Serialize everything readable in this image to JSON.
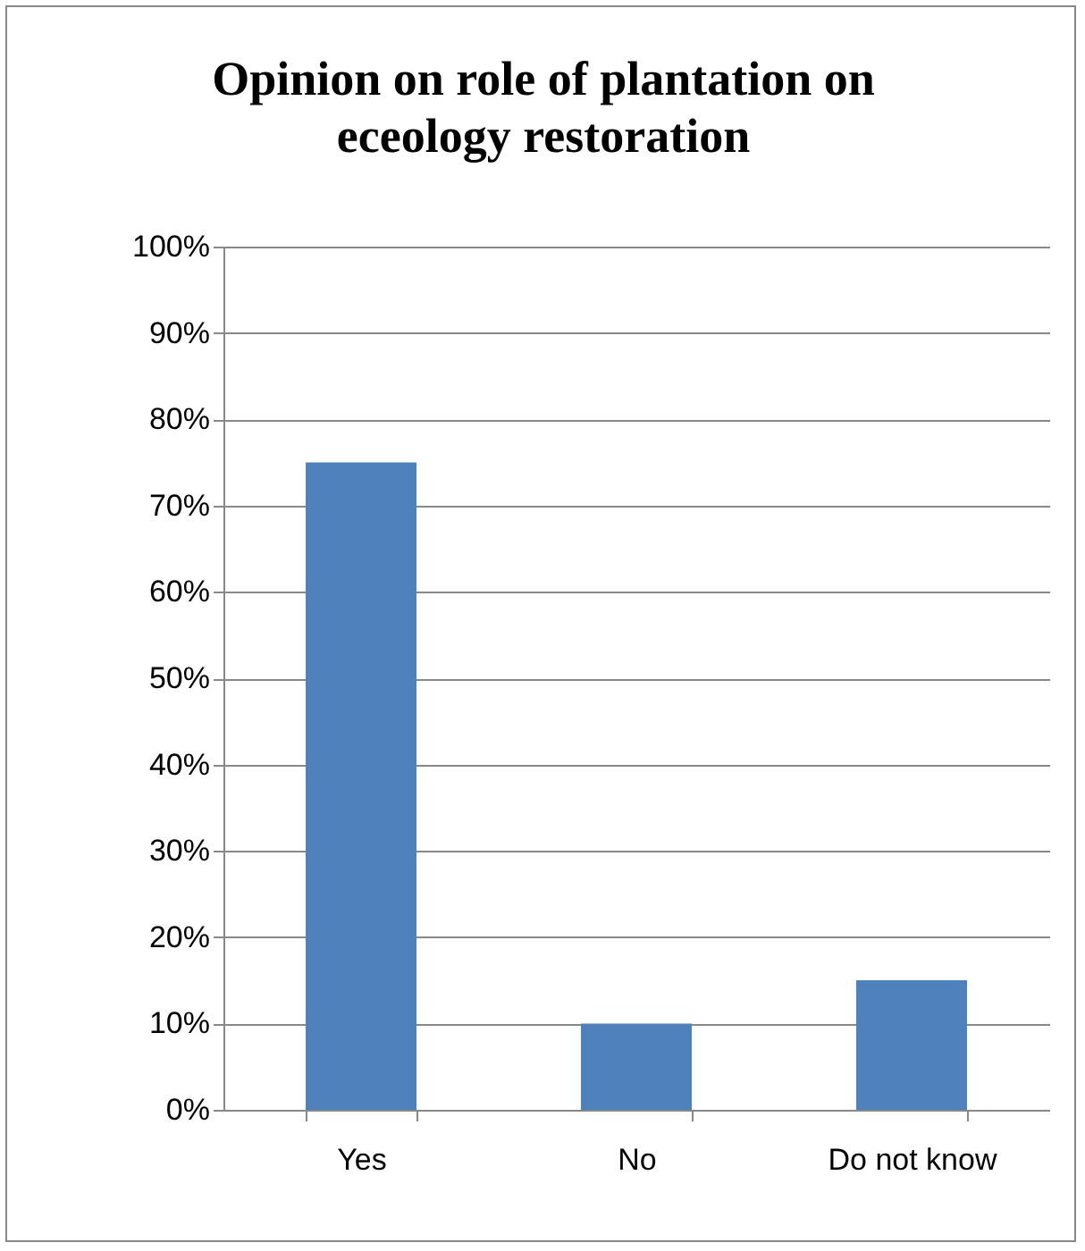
{
  "chart_data": {
    "type": "bar",
    "title": "Opinion on role of plantation on eceology restoration",
    "categories": [
      "Yes",
      "No",
      "Do not know"
    ],
    "values": [
      75,
      10,
      15
    ],
    "color": "#4f81bd",
    "ylim": [
      0,
      100
    ],
    "yticks": [
      {
        "value": 0,
        "label": "0%"
      },
      {
        "value": 10,
        "label": "10%"
      },
      {
        "value": 20,
        "label": "20%"
      },
      {
        "value": 30,
        "label": "30%"
      },
      {
        "value": 40,
        "label": "40%"
      },
      {
        "value": 50,
        "label": "50%"
      },
      {
        "value": 60,
        "label": "60%"
      },
      {
        "value": 70,
        "label": "70%"
      },
      {
        "value": 80,
        "label": "80%"
      },
      {
        "value": 90,
        "label": "90%"
      },
      {
        "value": 100,
        "label": "100%"
      }
    ],
    "grid": "y"
  }
}
